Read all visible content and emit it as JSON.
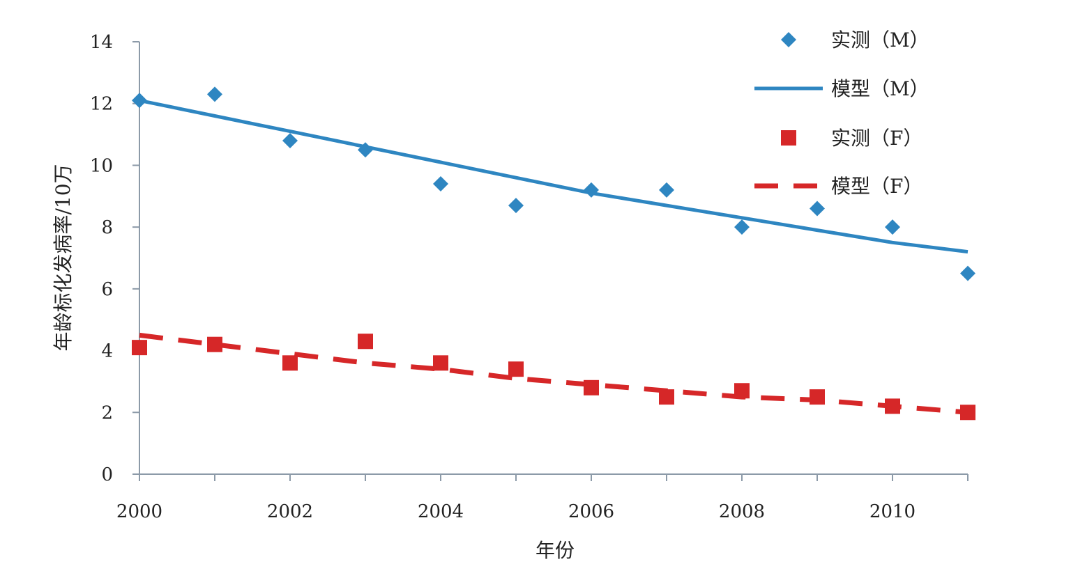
{
  "chart_data": {
    "type": "scatter",
    "title": "",
    "xlabel": "年份",
    "ylabel": "年龄标化发病率/10万",
    "xlim": [
      2000,
      2011
    ],
    "ylim": [
      0,
      14
    ],
    "x_ticks": [
      2000,
      2002,
      2004,
      2006,
      2008,
      2010
    ],
    "y_ticks": [
      0,
      2,
      4,
      6,
      8,
      10,
      12,
      14
    ],
    "grid": false,
    "legend_position": "top-right",
    "x": [
      2000,
      2001,
      2002,
      2003,
      2004,
      2005,
      2006,
      2007,
      2008,
      2009,
      2010,
      2011
    ],
    "series": [
      {
        "name": "实测（M）",
        "kind": "scatter",
        "marker": "diamond",
        "color": "#2E86C1",
        "values": [
          12.1,
          12.3,
          10.8,
          10.5,
          9.4,
          8.7,
          9.2,
          9.2,
          8.0,
          8.6,
          8.0,
          6.5
        ]
      },
      {
        "name": "模型（M）",
        "kind": "line",
        "style": "solid",
        "color": "#2E86C1",
        "values": [
          12.1,
          11.6,
          11.1,
          10.6,
          10.1,
          9.6,
          9.1,
          8.7,
          8.3,
          7.9,
          7.5,
          7.2
        ]
      },
      {
        "name": "实测（F）",
        "kind": "scatter",
        "marker": "square",
        "color": "#D62728",
        "values": [
          4.1,
          4.2,
          3.6,
          4.3,
          3.6,
          3.4,
          2.8,
          2.5,
          2.7,
          2.5,
          2.2,
          2.0
        ]
      },
      {
        "name": "模型（F）",
        "kind": "line",
        "style": "dashed",
        "color": "#D62728",
        "values": [
          4.5,
          4.2,
          3.9,
          3.6,
          3.4,
          3.1,
          2.9,
          2.7,
          2.5,
          2.4,
          2.2,
          2.0
        ]
      }
    ]
  }
}
